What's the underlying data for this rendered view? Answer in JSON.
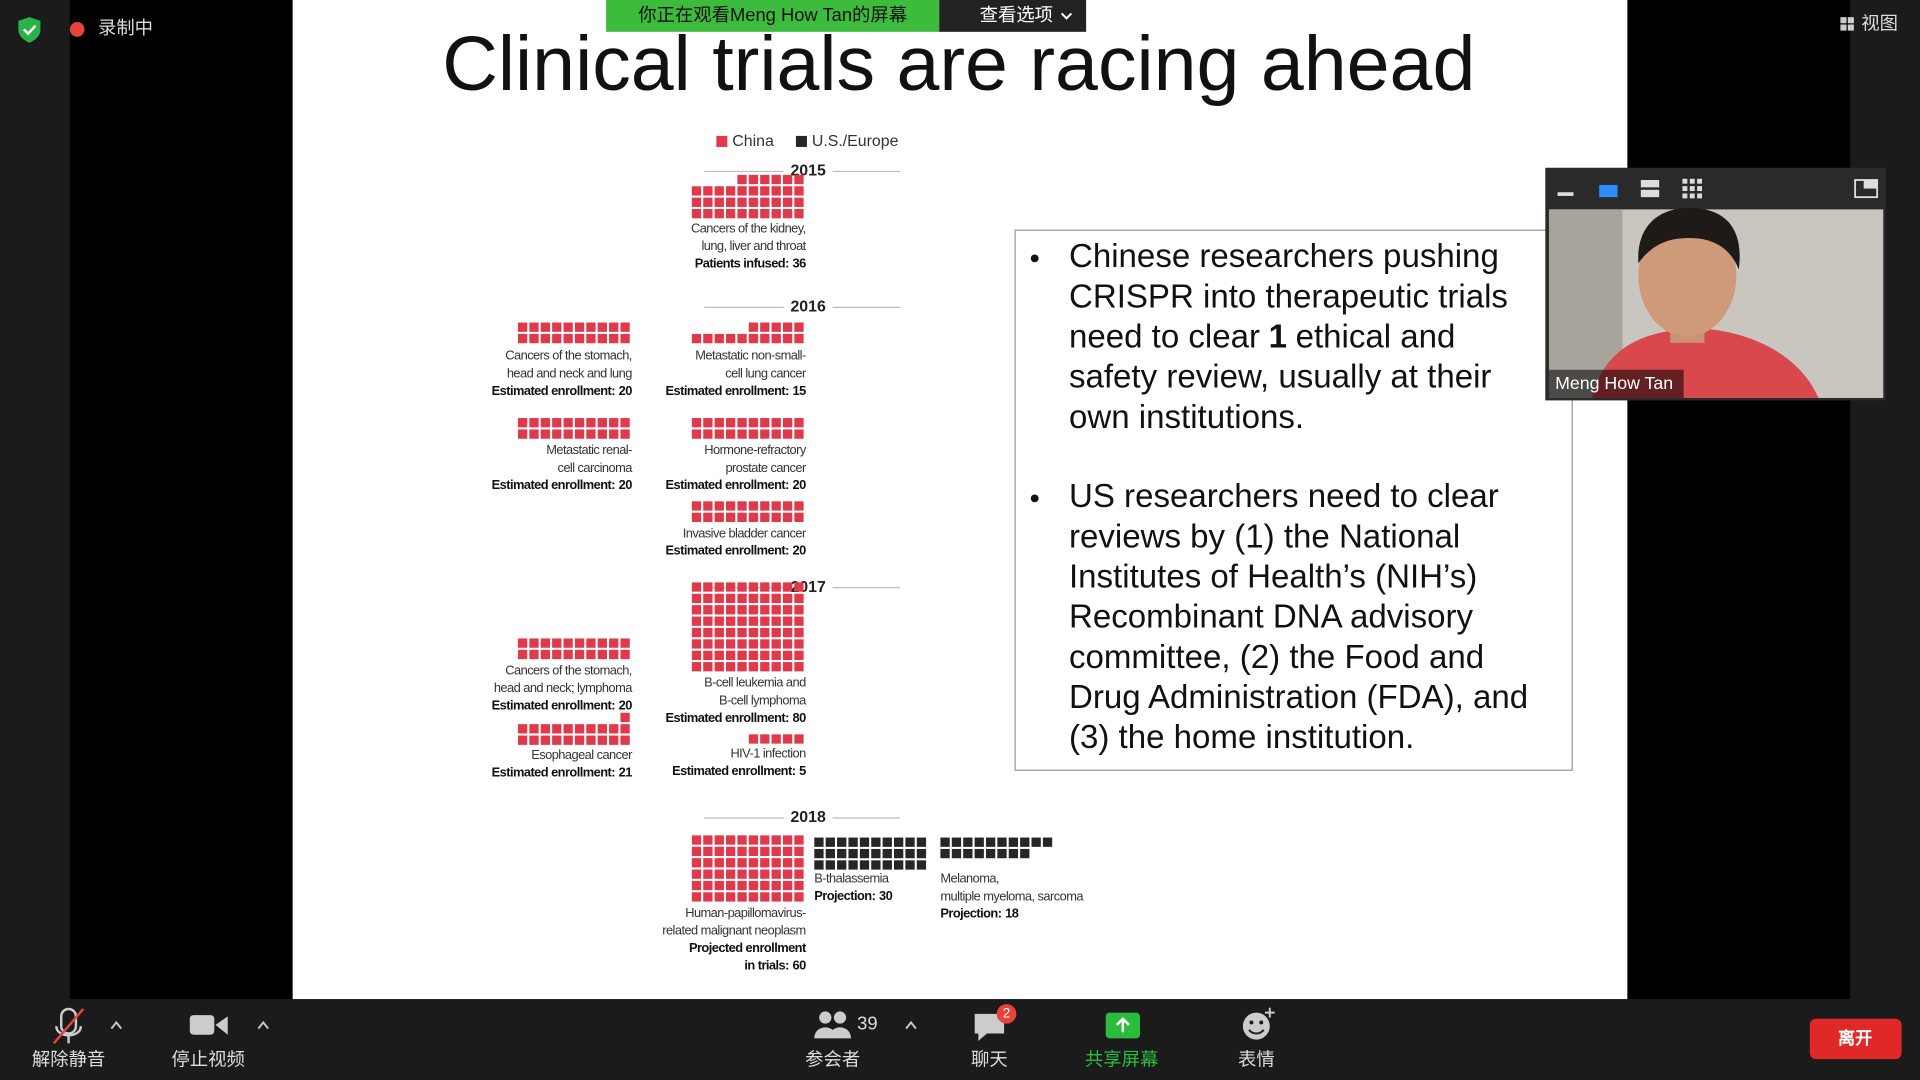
{
  "top_bar": {
    "recording": "录制中",
    "banner": "你正在观看Meng How Tan的屏幕",
    "view_options": "查看选项",
    "view": "视图"
  },
  "slide": {
    "title": "Clinical trials are racing ahead",
    "legend": [
      {
        "name": "China",
        "color": "#e0394b"
      },
      {
        "name": "U.S./Europe",
        "color": "#262626"
      }
    ],
    "years": [
      {
        "year": "2015",
        "trials": [
          {
            "lines": [
              "Cancers of the kidney,",
              "lung, liver and throat"
            ],
            "measure": [
              "Patients infused:"
            ],
            "value": 36,
            "color": "#e0394b"
          }
        ]
      },
      {
        "year": "2016",
        "trials": [
          {
            "lines": [
              "Cancers of the stomach,",
              "head and neck and lung"
            ],
            "measure": [
              "Estimated enrollment:"
            ],
            "value": 20,
            "color": "#e0394b"
          },
          {
            "lines": [
              "Metastatic non-small-",
              "cell lung cancer"
            ],
            "measure": [
              "Estimated enrollment:"
            ],
            "value": 15,
            "color": "#e0394b"
          },
          {
            "lines": [
              "Metastatic renal-",
              "cell carcinoma"
            ],
            "measure": [
              "Estimated enrollment:"
            ],
            "value": 20,
            "color": "#e0394b"
          },
          {
            "lines": [
              "Hormone-refractory",
              "prostate cancer"
            ],
            "measure": [
              "Estimated enrollment:"
            ],
            "value": 20,
            "color": "#e0394b"
          },
          {
            "lines": [
              "Invasive bladder cancer"
            ],
            "measure": [
              "Estimated enrollment:"
            ],
            "value": 20,
            "color": "#e0394b"
          }
        ]
      },
      {
        "year": "2017",
        "trials": [
          {
            "lines": [
              "B-cell leukemia and",
              "B-cell lymphoma"
            ],
            "measure": [
              "Estimated enrollment:"
            ],
            "value": 80,
            "color": "#e0394b"
          },
          {
            "lines": [
              "Cancers of the stomach,",
              "head and neck; lymphoma"
            ],
            "measure": [
              "Estimated enrollment:"
            ],
            "value": 20,
            "color": "#e0394b"
          },
          {
            "lines": [
              "Esophageal cancer"
            ],
            "measure": [
              "Estimated enrollment:"
            ],
            "value": 21,
            "color": "#e0394b"
          },
          {
            "lines": [
              "HIV-1 infection"
            ],
            "measure": [
              "Estimated enrollment:"
            ],
            "value": 5,
            "color": "#e0394b"
          }
        ]
      },
      {
        "year": "2018",
        "trials": [
          {
            "lines": [
              "Human-papillomavirus-",
              "related malignant neoplasm"
            ],
            "measure": [
              "Projected enrollment",
              "in trials:"
            ],
            "value": 60,
            "color": "#e0394b"
          },
          {
            "lines": [
              "B-thalassemia"
            ],
            "measure": [
              "Projection:"
            ],
            "value": 30,
            "color": "#262626"
          },
          {
            "lines": [
              "Melanoma,",
              "multiple myeloma, sarcoma"
            ],
            "measure": [
              "Projection:"
            ],
            "value": 18,
            "color": "#262626"
          }
        ]
      }
    ],
    "bullets": [
      {
        "lines": [
          "Chinese researchers pushing",
          "CRISPR into therapeutic trials",
          {
            "before": "need to clear",
            "bold": "1",
            "after": "ethical and"
          },
          "safety review, usually at their",
          "own institutions."
        ]
      },
      {
        "lines": [
          "US researchers need to clear",
          "reviews by (1) the National",
          "Institutes of Health’s (NIH’s)",
          "Recombinant DNA advisory",
          "committee, (2) the Food and",
          "Drug Administration (FDA), and",
          "(3) the home institution."
        ]
      }
    ]
  },
  "video": {
    "name": "Meng How Tan"
  },
  "toolbar": {
    "unmute": "解除静音",
    "stop_video": "停止视频",
    "participants": "参会者",
    "participant_count": 39,
    "chat": "聊天",
    "chat_badge": 2,
    "share": "共享屏幕",
    "reactions": "表情",
    "leave": "离开"
  }
}
